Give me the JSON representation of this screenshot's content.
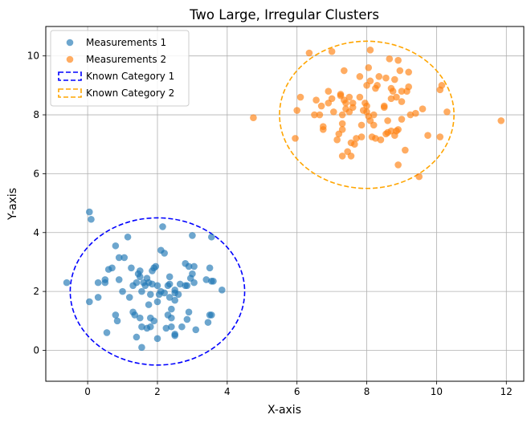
{
  "chart_data": {
    "type": "scatter",
    "title": "Two Large, Irregular Clusters",
    "xlabel": "X-axis",
    "ylabel": "Y-axis",
    "xlim": [
      -1.2,
      12.5
    ],
    "ylim": [
      -1.05,
      11.0
    ],
    "xticks": [
      0,
      2,
      4,
      6,
      8,
      10,
      12
    ],
    "yticks": [
      0,
      2,
      4,
      6,
      8,
      10
    ],
    "grid": true,
    "legend_position": "upper-left",
    "series": [
      {
        "name": "Measurements 1",
        "color": "#1f77b4",
        "points": [
          [
            -0.6,
            2.3
          ],
          [
            0.05,
            4.7
          ],
          [
            0.1,
            4.45
          ],
          [
            0.05,
            1.65
          ],
          [
            0.3,
            2.3
          ],
          [
            0.3,
            1.8
          ],
          [
            0.5,
            2.3
          ],
          [
            0.5,
            2.4
          ],
          [
            0.6,
            2.75
          ],
          [
            0.55,
            0.6
          ],
          [
            0.7,
            2.8
          ],
          [
            0.8,
            3.55
          ],
          [
            0.8,
            1.2
          ],
          [
            0.85,
            1.0
          ],
          [
            0.9,
            3.15
          ],
          [
            0.9,
            2.4
          ],
          [
            1.0,
            2.0
          ],
          [
            1.05,
            3.15
          ],
          [
            1.15,
            3.85
          ],
          [
            1.2,
            1.8
          ],
          [
            1.25,
            2.8
          ],
          [
            1.3,
            2.2
          ],
          [
            1.3,
            1.3
          ],
          [
            1.35,
            1.2
          ],
          [
            1.4,
            0.45
          ],
          [
            1.4,
            2.3
          ],
          [
            1.45,
            2.6
          ],
          [
            1.5,
            2.5
          ],
          [
            1.5,
            2.7
          ],
          [
            1.5,
            1.1
          ],
          [
            1.55,
            2.0
          ],
          [
            1.55,
            0.8
          ],
          [
            1.55,
            0.1
          ],
          [
            1.6,
            2.3
          ],
          [
            1.65,
            2.2
          ],
          [
            1.7,
            0.75
          ],
          [
            1.7,
            2.45
          ],
          [
            1.75,
            2.3
          ],
          [
            1.75,
            1.55
          ],
          [
            1.8,
            1.9
          ],
          [
            1.8,
            0.8
          ],
          [
            1.8,
            1.1
          ],
          [
            1.85,
            2.7
          ],
          [
            1.85,
            2.25
          ],
          [
            1.9,
            2.8
          ],
          [
            1.9,
            1.0
          ],
          [
            1.95,
            2.85
          ],
          [
            2.0,
            2.2
          ],
          [
            2.0,
            1.65
          ],
          [
            2.0,
            0.4
          ],
          [
            2.05,
            1.9
          ],
          [
            2.1,
            3.4
          ],
          [
            2.1,
            2.0
          ],
          [
            2.15,
            4.2
          ],
          [
            2.2,
            3.3
          ],
          [
            2.2,
            1.95
          ],
          [
            2.25,
            0.75
          ],
          [
            2.3,
            1.2
          ],
          [
            2.3,
            2.2
          ],
          [
            2.35,
            2.25
          ],
          [
            2.35,
            2.5
          ],
          [
            2.35,
            1.8
          ],
          [
            2.4,
            0.8
          ],
          [
            2.4,
            1.4
          ],
          [
            2.4,
            1.1
          ],
          [
            2.5,
            2.05
          ],
          [
            2.5,
            1.95
          ],
          [
            2.5,
            1.7
          ],
          [
            2.5,
            0.55
          ],
          [
            2.5,
            0.5
          ],
          [
            2.6,
            1.9
          ],
          [
            2.65,
            2.25
          ],
          [
            2.7,
            0.8
          ],
          [
            2.8,
            2.2
          ],
          [
            2.8,
            2.95
          ],
          [
            2.85,
            2.2
          ],
          [
            2.85,
            1.05
          ],
          [
            2.9,
            2.85
          ],
          [
            2.9,
            1.3
          ],
          [
            2.95,
            2.45
          ],
          [
            3.0,
            3.9
          ],
          [
            3.0,
            2.6
          ],
          [
            3.05,
            2.85
          ],
          [
            3.05,
            2.3
          ],
          [
            3.1,
            0.7
          ],
          [
            3.4,
            2.4
          ],
          [
            3.45,
            0.95
          ],
          [
            3.5,
            2.8
          ],
          [
            3.5,
            1.2
          ],
          [
            3.55,
            3.85
          ],
          [
            3.55,
            2.35
          ],
          [
            3.55,
            1.2
          ],
          [
            3.6,
            2.35
          ],
          [
            3.85,
            2.05
          ]
        ]
      },
      {
        "name": "Measurements 2",
        "color": "#ff7f0e",
        "points": [
          [
            4.75,
            7.9
          ],
          [
            5.95,
            7.2
          ],
          [
            6.0,
            8.15
          ],
          [
            6.1,
            8.6
          ],
          [
            6.35,
            10.1
          ],
          [
            6.5,
            8.0
          ],
          [
            6.55,
            8.5
          ],
          [
            6.65,
            8.0
          ],
          [
            6.7,
            8.3
          ],
          [
            6.75,
            7.6
          ],
          [
            6.75,
            7.5
          ],
          [
            6.9,
            8.8
          ],
          [
            6.9,
            8.4
          ],
          [
            7.0,
            8.55
          ],
          [
            7.0,
            10.15
          ],
          [
            7.05,
            8.1
          ],
          [
            7.15,
            7.15
          ],
          [
            7.2,
            7.35
          ],
          [
            7.25,
            8.7
          ],
          [
            7.25,
            8.65
          ],
          [
            7.3,
            8.0
          ],
          [
            7.3,
            7.7
          ],
          [
            7.3,
            7.5
          ],
          [
            7.3,
            6.6
          ],
          [
            7.35,
            9.5
          ],
          [
            7.35,
            8.5
          ],
          [
            7.4,
            8.4
          ],
          [
            7.4,
            8.2
          ],
          [
            7.45,
            6.75
          ],
          [
            7.5,
            8.6
          ],
          [
            7.5,
            8.1
          ],
          [
            7.55,
            7.05
          ],
          [
            7.55,
            6.6
          ],
          [
            7.6,
            8.4
          ],
          [
            7.6,
            8.25
          ],
          [
            7.65,
            7.0
          ],
          [
            7.7,
            7.2
          ],
          [
            7.8,
            9.3
          ],
          [
            7.8,
            8.6
          ],
          [
            7.85,
            7.65
          ],
          [
            7.85,
            7.25
          ],
          [
            7.9,
            8.15
          ],
          [
            7.95,
            8.4
          ],
          [
            8.0,
            9.0
          ],
          [
            8.0,
            8.3
          ],
          [
            8.0,
            8.1
          ],
          [
            8.05,
            9.6
          ],
          [
            8.05,
            7.95
          ],
          [
            8.1,
            10.2
          ],
          [
            8.1,
            9.15
          ],
          [
            8.15,
            7.25
          ],
          [
            8.2,
            7.65
          ],
          [
            8.2,
            8.0
          ],
          [
            8.25,
            7.2
          ],
          [
            8.25,
            8.9
          ],
          [
            8.3,
            9.0
          ],
          [
            8.35,
            9.3
          ],
          [
            8.4,
            7.15
          ],
          [
            8.5,
            8.3
          ],
          [
            8.5,
            8.25
          ],
          [
            8.55,
            7.35
          ],
          [
            8.55,
            9.25
          ],
          [
            8.6,
            7.8
          ],
          [
            8.6,
            7.4
          ],
          [
            8.65,
            9.9
          ],
          [
            8.7,
            8.9
          ],
          [
            8.7,
            8.55
          ],
          [
            8.7,
            7.45
          ],
          [
            8.75,
            8.8
          ],
          [
            8.8,
            7.3
          ],
          [
            8.8,
            9.2
          ],
          [
            8.85,
            7.45
          ],
          [
            8.85,
            8.6
          ],
          [
            8.9,
            9.85
          ],
          [
            8.9,
            7.5
          ],
          [
            8.95,
            9.5
          ],
          [
            9.0,
            8.8
          ],
          [
            9.0,
            7.85
          ],
          [
            9.0,
            8.45
          ],
          [
            9.1,
            6.8
          ],
          [
            9.15,
            8.8
          ],
          [
            9.2,
            8.95
          ],
          [
            9.2,
            9.45
          ],
          [
            9.25,
            8.0
          ],
          [
            9.4,
            8.05
          ],
          [
            9.5,
            5.9
          ],
          [
            9.6,
            8.2
          ],
          [
            9.75,
            7.3
          ],
          [
            10.1,
            8.85
          ],
          [
            10.1,
            7.25
          ],
          [
            10.15,
            9.0
          ],
          [
            10.3,
            8.1
          ],
          [
            11.85,
            7.8
          ],
          [
            8.9,
            6.3
          ],
          [
            8.1,
            7.8
          ]
        ]
      }
    ],
    "reference_ellipses": [
      {
        "name": "Known Category 1",
        "color": "#0000ff",
        "cx": 2,
        "cy": 2,
        "rx": 2.5,
        "ry": 2.5
      },
      {
        "name": "Known Category 2",
        "color": "#ffa500",
        "cx": 8,
        "cy": 8,
        "rx": 2.5,
        "ry": 2.5
      }
    ]
  }
}
